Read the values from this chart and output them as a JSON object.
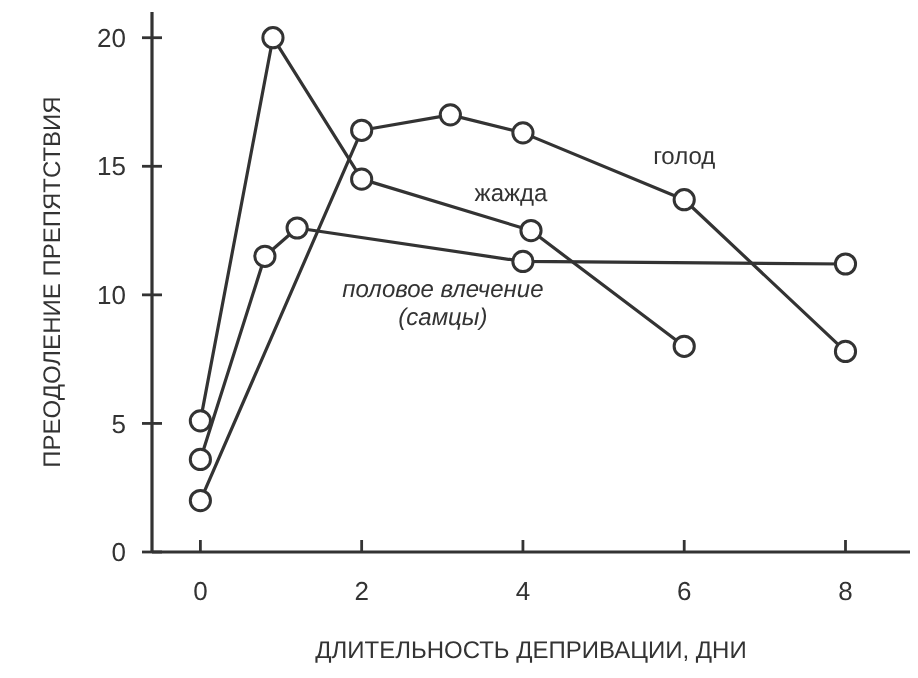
{
  "chart_data": {
    "type": "line",
    "xlabel": "ДЛИТЕЛЬНОСТЬ ДЕПРИВАЦИИ, ДНИ",
    "ylabel": "ПРЕОДОЛЕНИЕ ПРЕПЯТСТВИЯ",
    "xlim": [
      -0.6,
      8.8
    ],
    "xticks": [
      0,
      2,
      4,
      6,
      8
    ],
    "ylim": [
      0,
      21
    ],
    "yticks": [
      0,
      5,
      10,
      15,
      20
    ],
    "marker": "circle",
    "line_style": "solid",
    "grid": false,
    "series": [
      {
        "name": "голод",
        "color": "#333333",
        "x": [
          0,
          2,
          3.1,
          4,
          6,
          8
        ],
        "values": [
          2.0,
          16.4,
          17.0,
          16.3,
          13.7,
          7.8
        ]
      },
      {
        "name": "жажда",
        "color": "#333333",
        "x": [
          0,
          0.9,
          2,
          4.1,
          6
        ],
        "values": [
          5.1,
          20,
          14.5,
          12.5,
          8.0
        ]
      },
      {
        "name": "половое влечение (самцы)",
        "color": "#333333",
        "x": [
          0,
          0.8,
          1.2,
          4,
          8
        ],
        "values": [
          3.6,
          11.5,
          12.6,
          11.3,
          11.2
        ]
      }
    ]
  }
}
